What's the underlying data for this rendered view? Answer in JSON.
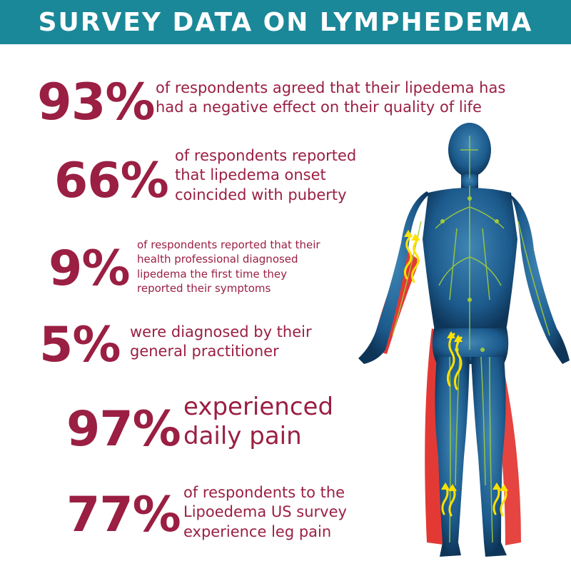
{
  "header": {
    "title": "SURVEY DATA ON LYMPHEDEMA"
  },
  "stats": [
    {
      "value": "93%",
      "text": "of respondents agreed that their lipedema has had a negative effect on their quality of life"
    },
    {
      "value": "66%",
      "text": "of respondents reported that lipedema onset coincided with puberty"
    },
    {
      "value": "9%",
      "text": "of respondents reported that their health professional diagnosed lipedema the first time they reported their symptoms"
    },
    {
      "value": "5%",
      "text": "were diagnosed by their general practitioner"
    },
    {
      "value": "97%",
      "text": "experienced daily pain"
    },
    {
      "value": "77%",
      "text": "of respondents to the Lipoedema US survey experience leg pain"
    }
  ],
  "colors": {
    "header_bg": "#1a8898",
    "accent": "#9a1f43",
    "body_blue": "#1c5a8c",
    "nerve_green": "#9ecb3a",
    "highlight_red": "#e0231f",
    "arrow_yellow": "#ffe100"
  },
  "icons": {
    "figure": "human-lymphatic-body-icon"
  }
}
